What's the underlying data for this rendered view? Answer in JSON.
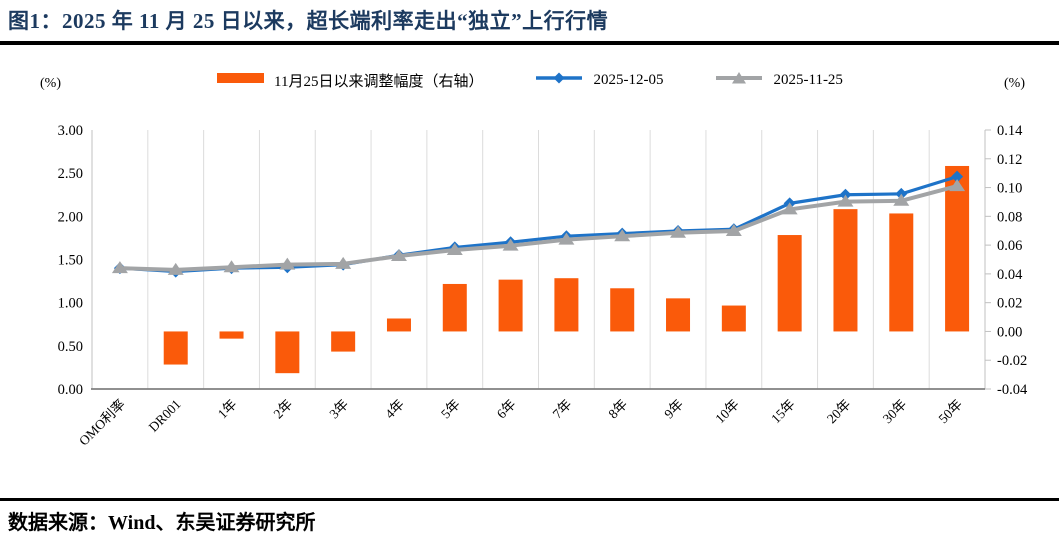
{
  "figure": {
    "title": "图1：2025 年 11 月 25 日以来，超长端利率走出“独立”上行行情",
    "source": "数据来源：Wind、东吴证券研究所"
  },
  "legend": {
    "items": [
      {
        "label": "11月25日以来调整幅度（右轴）",
        "marker": "bar-swatch",
        "color": "#FA5A0A"
      },
      {
        "label": "2025-12-05",
        "marker": "line-diamond",
        "color": "#1E73C8"
      },
      {
        "label": "2025-11-25",
        "marker": "line-triangle",
        "color": "#A2A4A6"
      }
    ]
  },
  "chart_data": {
    "type": "combo-bar-line",
    "title": "图1：2025 年 11 月 25 日以来，超长端利率走出“独立”上行行情",
    "categories": [
      "OMO利率",
      "DR001",
      "1年",
      "2年",
      "3年",
      "4年",
      "5年",
      "6年",
      "7年",
      "8年",
      "9年",
      "10年",
      "15年",
      "20年",
      "30年",
      "50年"
    ],
    "series": [
      {
        "name": "11月25日以来调整幅度（右轴）",
        "type": "bar",
        "axis": "right",
        "color": "#FA5A0A",
        "values": [
          0,
          -0.023,
          -0.005,
          -0.029,
          -0.014,
          0.009,
          0.033,
          0.036,
          0.037,
          0.03,
          0.023,
          0.018,
          0.067,
          0.085,
          0.082,
          0.115
        ]
      },
      {
        "name": "2025-12-05",
        "type": "line",
        "marker": "diamond",
        "axis": "left",
        "color": "#1E73C8",
        "values": [
          1.4,
          1.36,
          1.4,
          1.41,
          1.44,
          1.55,
          1.64,
          1.7,
          1.77,
          1.8,
          1.83,
          1.85,
          2.15,
          2.25,
          2.26,
          2.46
        ]
      },
      {
        "name": "2025-11-25",
        "type": "line",
        "marker": "triangle",
        "axis": "left",
        "color": "#A2A4A6",
        "values": [
          1.4,
          1.38,
          1.41,
          1.44,
          1.45,
          1.54,
          1.61,
          1.66,
          1.73,
          1.77,
          1.81,
          1.83,
          2.08,
          2.17,
          2.18,
          2.35
        ]
      }
    ],
    "left_axis": {
      "unit": "(%)",
      "min": 0,
      "max": 3,
      "tick_labels": [
        "3.00",
        "2.50",
        "2.00",
        "1.50",
        "1.00",
        "0.50",
        "0.00"
      ]
    },
    "right_axis": {
      "unit": "(%)",
      "min": -0.04,
      "max": 0.14,
      "tick_labels": [
        "0.14",
        "0.12",
        "0.10",
        "0.08",
        "0.06",
        "0.04",
        "0.02",
        "0.00",
        "-0.02",
        "-0.04"
      ]
    },
    "grid": "vertical-only",
    "legend_position": "top-center",
    "theme": {
      "title_color": "#1C3A5F",
      "gridline_color": "#DCDCDC",
      "side_axis_color": "#C0C0C0",
      "bottom_axis_color": "#808080",
      "bar_color": "#FA5A0A",
      "line1_color": "#1E73C8",
      "line2_color": "#A2A4A6"
    }
  }
}
